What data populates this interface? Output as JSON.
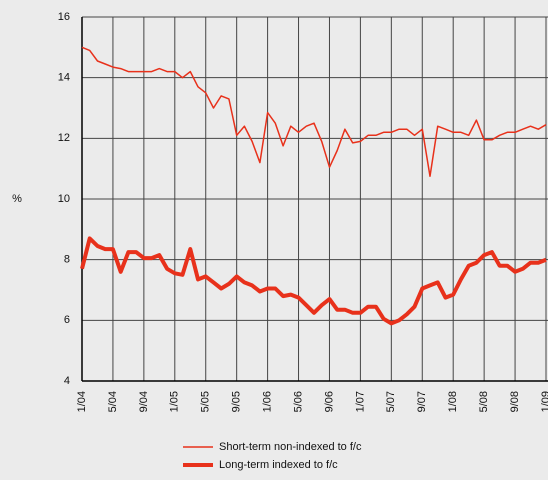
{
  "chart_data": {
    "type": "line",
    "y_label": "%",
    "categories": [
      "1/04",
      null,
      null,
      null,
      "5/04",
      null,
      null,
      null,
      "9/04",
      null,
      null,
      null,
      "1/05",
      null,
      null,
      null,
      "5/05",
      null,
      null,
      null,
      "9/05",
      null,
      null,
      null,
      "1/06",
      null,
      null,
      null,
      "5/06",
      null,
      null,
      null,
      "9/06",
      null,
      null,
      null,
      "1/07",
      null,
      null,
      null,
      "5/07",
      null,
      null,
      null,
      "9/07",
      null,
      null,
      null,
      "1/08",
      null,
      null,
      null,
      "5/08",
      null,
      null,
      null,
      "9/08",
      null,
      null,
      null,
      "1/09"
    ],
    "series": [
      {
        "name": "Short-term non-indexed to f/c",
        "color": "#e8311b",
        "width": 1.5,
        "values": [
          15.0,
          14.9,
          14.55,
          14.45,
          14.35,
          14.3,
          14.2,
          14.2,
          14.2,
          14.2,
          14.3,
          14.2,
          14.2,
          14.0,
          14.2,
          13.7,
          13.5,
          13.0,
          13.4,
          13.3,
          12.1,
          12.4,
          11.9,
          11.2,
          12.85,
          12.5,
          11.75,
          12.4,
          12.2,
          12.4,
          12.5,
          11.9,
          11.05,
          11.6,
          12.3,
          11.85,
          11.9,
          12.1,
          12.1,
          12.2,
          12.2,
          12.3,
          12.3,
          12.1,
          12.3,
          10.75,
          12.4,
          12.3,
          12.2,
          12.2,
          12.1,
          12.6,
          11.95,
          11.95,
          12.1,
          12.2,
          12.2,
          12.3,
          12.4,
          12.3,
          12.45
        ]
      },
      {
        "name": "Long-term indexed to f/c",
        "color": "#e8311b",
        "width": 4,
        "values": [
          7.7,
          8.7,
          8.45,
          8.35,
          8.35,
          7.6,
          8.25,
          8.25,
          8.05,
          8.05,
          8.15,
          7.7,
          7.55,
          7.5,
          8.35,
          7.35,
          7.45,
          7.25,
          7.05,
          7.2,
          7.45,
          7.25,
          7.15,
          6.95,
          7.05,
          7.05,
          6.8,
          6.85,
          6.75,
          6.5,
          6.25,
          6.5,
          6.7,
          6.35,
          6.35,
          6.25,
          6.25,
          6.45,
          6.45,
          6.05,
          5.9,
          6.0,
          6.2,
          6.45,
          7.05,
          7.15,
          7.25,
          6.75,
          6.85,
          7.35,
          7.8,
          7.9,
          8.15,
          8.25,
          7.8,
          7.8,
          7.6,
          7.7,
          7.9,
          7.9,
          8.0
        ]
      }
    ],
    "ylim": [
      4,
      16
    ],
    "yticks": [
      4,
      6,
      8,
      10,
      12,
      14,
      16
    ],
    "grid": true,
    "legend": "bottom"
  }
}
